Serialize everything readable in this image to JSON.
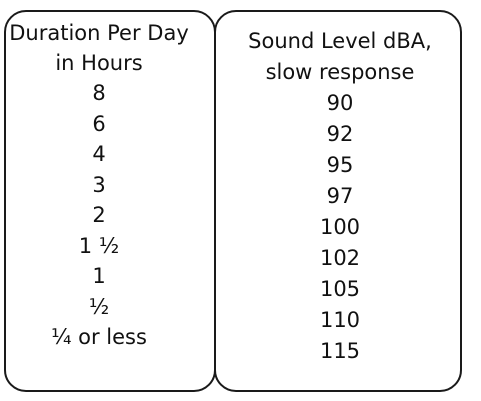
{
  "chart_data": {
    "type": "table",
    "columns": [
      "Duration Per Day in Hours",
      "Sound Level dBA, slow response"
    ],
    "headers": {
      "duration_line1": "Duration Per Day",
      "duration_line2": "in Hours",
      "sound_line1": "Sound Level dBA,",
      "sound_line2": "slow response"
    },
    "rows": [
      {
        "duration": "8",
        "level": "90"
      },
      {
        "duration": "6",
        "level": "92"
      },
      {
        "duration": "4",
        "level": "95"
      },
      {
        "duration": "3",
        "level": "97"
      },
      {
        "duration": "2",
        "level": "100"
      },
      {
        "duration": "1 ½",
        "level": "102"
      },
      {
        "duration": "1",
        "level": "105"
      },
      {
        "duration": "½",
        "level": "110"
      },
      {
        "duration": "¼ or less",
        "level": "115"
      }
    ],
    "duration_hours": [
      8,
      6,
      4,
      3,
      2,
      1.5,
      1,
      0.5,
      0.25
    ],
    "sound_level_dba": [
      90,
      92,
      95,
      97,
      100,
      102,
      105,
      110,
      115
    ]
  },
  "colors": {
    "border": "#1a1a1a",
    "text": "#111111",
    "background": "#ffffff"
  }
}
